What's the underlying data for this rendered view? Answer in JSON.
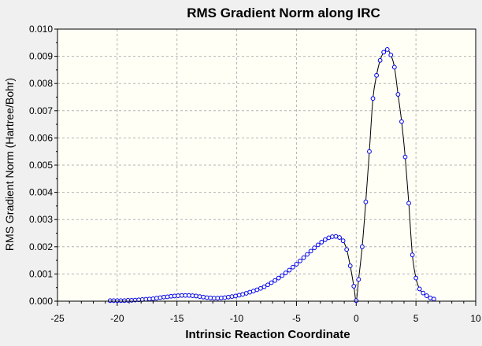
{
  "chart_data": {
    "type": "line",
    "title": "RMS Gradient Norm along IRC",
    "xlabel": "Intrinsic Reaction Coordinate",
    "ylabel": "RMS Gradient Norm (Hartree/Bohr)",
    "xlim": [
      -25,
      10
    ],
    "ylim": [
      0,
      0.01
    ],
    "xticks": [
      -25,
      -20,
      -15,
      -10,
      -5,
      0,
      5,
      10
    ],
    "xtick_labels": [
      "-25",
      "-20",
      "-15",
      "-10",
      "-5",
      "0",
      "5",
      "10"
    ],
    "yticks": [
      0,
      0.001,
      0.002,
      0.003,
      0.004,
      0.005,
      0.006,
      0.007,
      0.008,
      0.009,
      0.01
    ],
    "ytick_labels": [
      "0.000",
      "0.001",
      "0.002",
      "0.003",
      "0.004",
      "0.005",
      "0.006",
      "0.007",
      "0.008",
      "0.009",
      "0.010"
    ],
    "grid": true,
    "colors": {
      "plot_bg": "#fffff6",
      "line": "#000000",
      "marker": "#0000ee",
      "grid": "#b4b4b4"
    },
    "series": [
      {
        "markers": "circle",
        "x": [
          -20.6,
          -20.3,
          -20.0,
          -19.7,
          -19.4,
          -19.1,
          -18.8,
          -18.5,
          -18.2,
          -17.9,
          -17.6,
          -17.3,
          -17.0,
          -16.7,
          -16.4,
          -16.1,
          -15.8,
          -15.5,
          -15.2,
          -14.9,
          -14.6,
          -14.3,
          -14.0,
          -13.7,
          -13.4,
          -13.1,
          -12.8,
          -12.5,
          -12.2,
          -11.9,
          -11.6,
          -11.3,
          -11.0,
          -10.7,
          -10.4,
          -10.1,
          -9.8,
          -9.5,
          -9.2,
          -8.9,
          -8.6,
          -8.3,
          -8.0,
          -7.7,
          -7.4,
          -7.1,
          -6.8,
          -6.5,
          -6.2,
          -5.9,
          -5.6,
          -5.3,
          -5.0,
          -4.7,
          -4.4,
          -4.1,
          -3.8,
          -3.5,
          -3.2,
          -2.9,
          -2.6,
          -2.3,
          -2.0,
          -1.7,
          -1.4,
          -1.1,
          -0.8,
          -0.5,
          -0.2,
          0.0,
          0.2,
          0.5,
          0.8,
          1.1,
          1.4,
          1.7,
          2.0,
          2.3,
          2.6,
          2.9,
          3.2,
          3.5,
          3.8,
          4.1,
          4.4,
          4.7,
          5.0,
          5.3,
          5.6,
          5.9,
          6.2,
          6.5
        ],
        "y": [
          2e-05,
          2e-05,
          2e-05,
          2e-05,
          2e-05,
          3e-05,
          3e-05,
          4e-05,
          5e-05,
          6e-05,
          7e-05,
          8e-05,
          9e-05,
          0.00011,
          0.00013,
          0.00015,
          0.00016,
          0.00018,
          0.00019,
          0.0002,
          0.00021,
          0.00021,
          0.00021,
          0.0002,
          0.00019,
          0.00017,
          0.00015,
          0.00013,
          0.00012,
          0.00011,
          0.00011,
          0.00012,
          0.00013,
          0.00015,
          0.00017,
          0.00019,
          0.00022,
          0.00025,
          0.00029,
          0.00033,
          0.00037,
          0.00042,
          0.00047,
          0.00053,
          0.0006,
          0.00068,
          0.00076,
          0.00085,
          0.00094,
          0.00104,
          0.00114,
          0.00125,
          0.00136,
          0.00148,
          0.0016,
          0.00172,
          0.00184,
          0.00196,
          0.00207,
          0.00217,
          0.00226,
          0.00233,
          0.00237,
          0.00238,
          0.00234,
          0.00222,
          0.0019,
          0.0013,
          0.00055,
          2e-05,
          0.0008,
          0.002,
          0.00365,
          0.0055,
          0.00745,
          0.0083,
          0.00885,
          0.00915,
          0.00925,
          0.00905,
          0.0086,
          0.0076,
          0.0066,
          0.0053,
          0.0036,
          0.0017,
          0.00085,
          0.00045,
          0.0003,
          0.0002,
          0.00012,
          8e-05
        ]
      }
    ]
  }
}
